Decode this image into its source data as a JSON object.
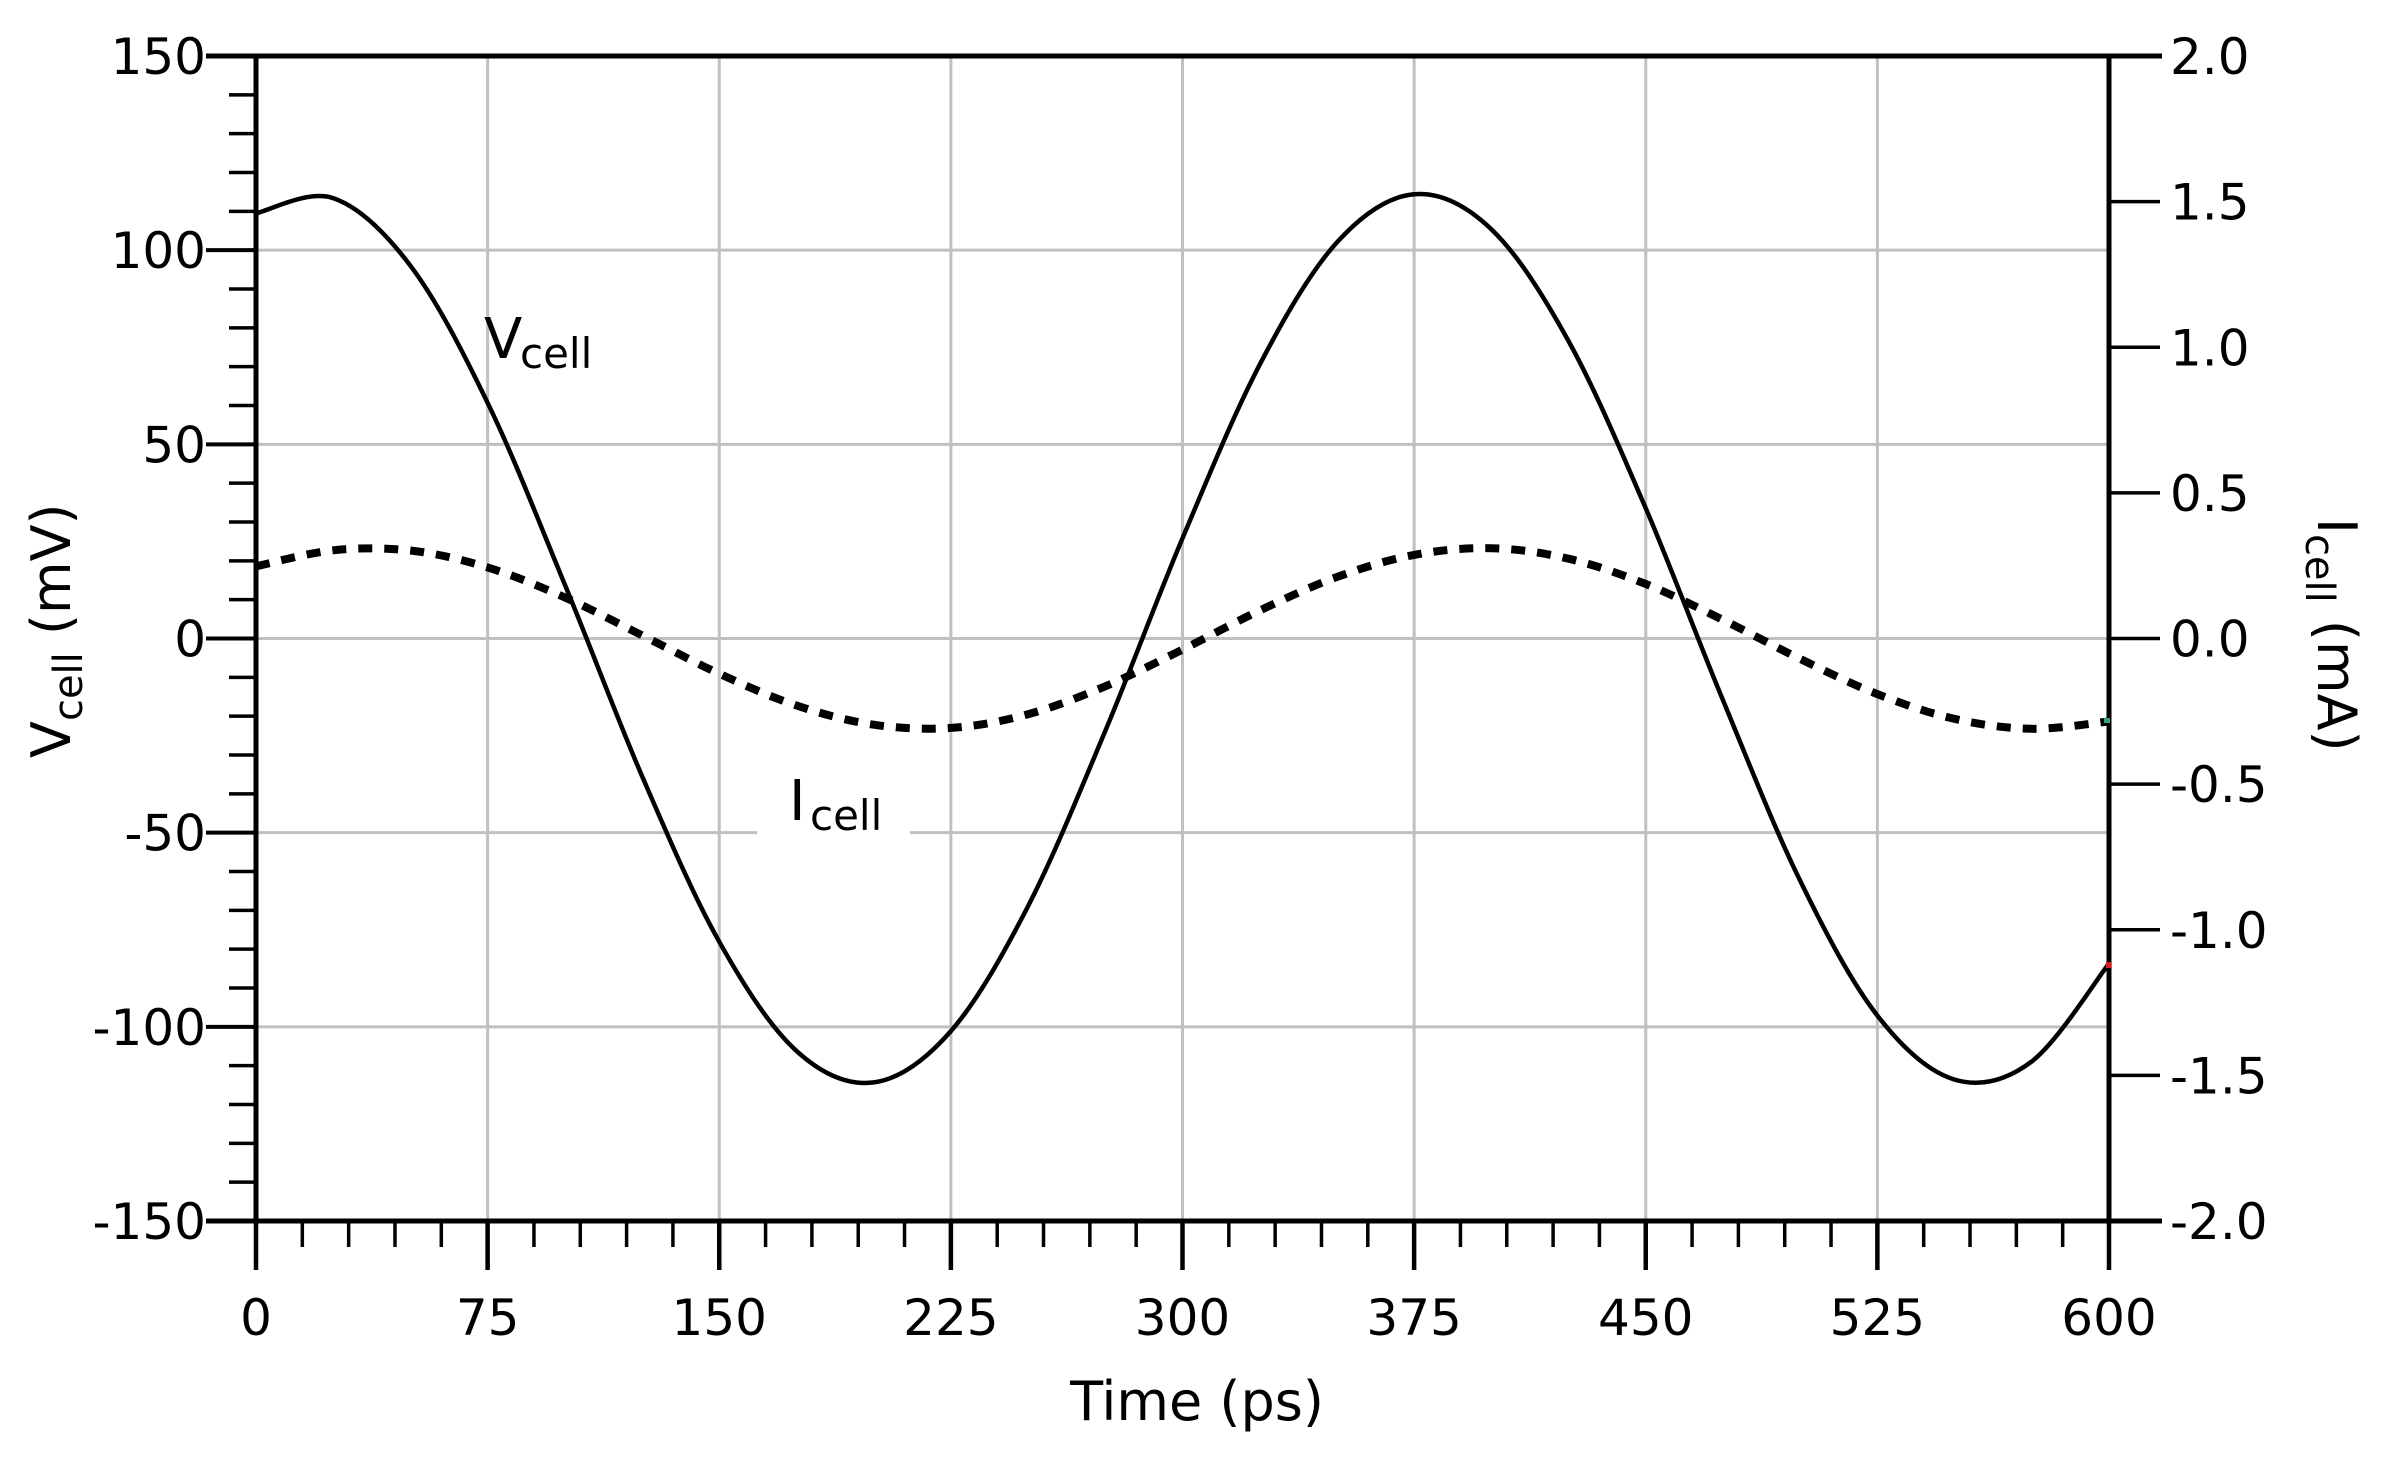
{
  "chart_data": {
    "type": "line",
    "title": "",
    "xlabel": "Time (ps)",
    "ylabel_left": {
      "main": "V",
      "sub": "cell",
      "unit": " (mV)"
    },
    "ylabel_right": {
      "main": "I",
      "sub": "cell",
      "unit": " (mA)"
    },
    "xlim": [
      0,
      600
    ],
    "ylim_left": [
      -150,
      150
    ],
    "ylim_right": [
      -2.0,
      2.0
    ],
    "x_ticks": [
      "0",
      "75",
      "150",
      "225",
      "300",
      "375",
      "450",
      "525",
      "600"
    ],
    "y_left_ticks": [
      "150",
      "100",
      "50",
      "0",
      "-50",
      "-100",
      "-150"
    ],
    "y_right_ticks": [
      "2.0",
      "1.5",
      "1.0",
      "0.5",
      "0.0",
      "-0.5",
      "-1.0",
      "-1.5",
      "-2.0"
    ],
    "grid": true,
    "legend": "none (inline series labels)",
    "annotations": [
      {
        "text_main": "V",
        "text_sub": "cell",
        "near_series": "Vcell",
        "x": 55,
        "y_mV": 78
      },
      {
        "text_main": "I",
        "text_sub": "cell",
        "near_series": "Icell",
        "x": 135,
        "y_mV": -42
      }
    ],
    "x": [
      0,
      25,
      50,
      75,
      100,
      125,
      150,
      175,
      200,
      225,
      250,
      275,
      300,
      325,
      350,
      375,
      400,
      425,
      450,
      475,
      500,
      525,
      550,
      575,
      600
    ],
    "series": [
      {
        "name": "Vcell",
        "axis": "left",
        "unit": "mV",
        "style": "solid",
        "color": "#000000",
        "values": [
          109.5,
          113.4,
          96.0,
          60.7,
          13.9,
          -35.4,
          -78.1,
          -106.2,
          -114.3,
          -101.1,
          -68.9,
          -23.8,
          25.8,
          70.5,
          102.0,
          114.4,
          105.4,
          76.6,
          33.5,
          -15.9,
          -62.4,
          -97.1,
          -113.6,
          -108.9,
          -83.7
        ]
      },
      {
        "name": "Icell",
        "axis": "right",
        "unit": "mA",
        "style": "dashed",
        "color": "#000000",
        "values": [
          0.248,
          0.303,
          0.302,
          0.244,
          0.141,
          0.011,
          -0.121,
          -0.23,
          -0.296,
          -0.307,
          -0.26,
          -0.164,
          -0.038,
          0.096,
          0.211,
          0.287,
          0.31,
          0.274,
          0.187,
          0.064,
          -0.07,
          -0.191,
          -0.276,
          -0.31,
          -0.285
        ]
      }
    ]
  },
  "colors": {
    "axis": "#000000",
    "grid": "#c0c0c0",
    "background": "#ffffff"
  }
}
